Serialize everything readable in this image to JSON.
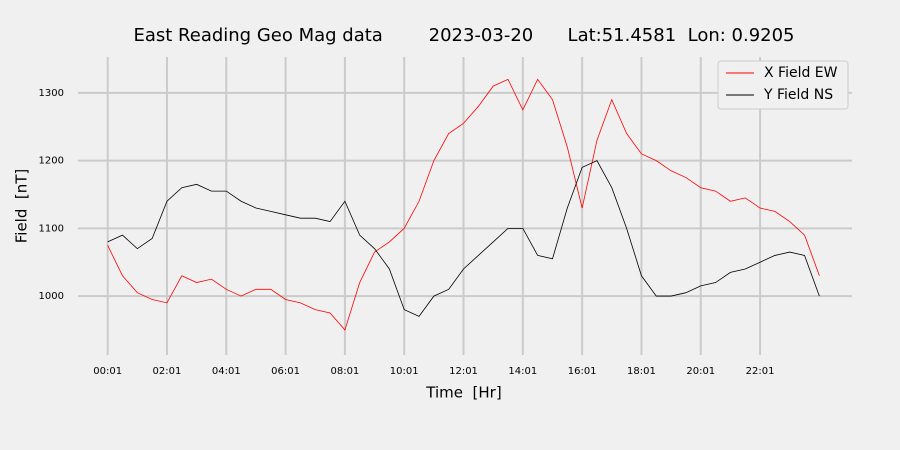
{
  "chart_data": {
    "type": "line",
    "title": "East Reading Geo Mag data        2023-03-20      Lat:51.4581  Lon: 0.9205",
    "xlabel": "Time  [Hr]",
    "ylabel": "Field  [nT]",
    "x": [
      0,
      0.5,
      1,
      1.5,
      2,
      2.5,
      3,
      3.5,
      4,
      4.5,
      5,
      5.5,
      6,
      6.5,
      7,
      7.5,
      8,
      8.5,
      9,
      9.5,
      10,
      10.5,
      11,
      11.5,
      12,
      12.5,
      13,
      13.5,
      14,
      14.5,
      15,
      15.5,
      16,
      16.5,
      17,
      17.5,
      18,
      18.5,
      19,
      19.5,
      20,
      20.5,
      21,
      21.5,
      22,
      22.5,
      23,
      23.5,
      24
    ],
    "series": [
      {
        "name": "X Field EW",
        "color": "#ff0000",
        "values": [
          1075,
          1030,
          1005,
          995,
          990,
          1030,
          1020,
          1025,
          1010,
          1000,
          1010,
          1010,
          995,
          990,
          980,
          975,
          950,
          1020,
          1065,
          1080,
          1100,
          1140,
          1200,
          1240,
          1255,
          1280,
          1310,
          1320,
          1275,
          1320,
          1290,
          1220,
          1130,
          1230,
          1290,
          1240,
          1210,
          1200,
          1185,
          1175,
          1160,
          1155,
          1140,
          1145,
          1130,
          1125,
          1110,
          1090,
          1030
        ]
      },
      {
        "name": "Y Field NS",
        "color": "#000000",
        "values": [
          1080,
          1090,
          1070,
          1085,
          1140,
          1160,
          1165,
          1155,
          1155,
          1140,
          1130,
          1125,
          1120,
          1115,
          1115,
          1110,
          1140,
          1090,
          1070,
          1040,
          980,
          970,
          1000,
          1010,
          1040,
          1060,
          1080,
          1100,
          1100,
          1060,
          1055,
          1130,
          1190,
          1200,
          1160,
          1100,
          1030,
          1000,
          1000,
          1005,
          1015,
          1020,
          1035,
          1040,
          1050,
          1060,
          1065,
          1060,
          1000
        ]
      }
    ],
    "xlim": [
      -1,
      25.1
    ],
    "xticks": [
      {
        "value": 0,
        "label": "00:01"
      },
      {
        "value": 2,
        "label": "02:01"
      },
      {
        "value": 4,
        "label": "04:01"
      },
      {
        "value": 6,
        "label": "06:01"
      },
      {
        "value": 8,
        "label": "08:01"
      },
      {
        "value": 10,
        "label": "10:01"
      },
      {
        "value": 12,
        "label": "12:01"
      },
      {
        "value": 14,
        "label": "14:01"
      },
      {
        "value": 16,
        "label": "16:01"
      },
      {
        "value": 18,
        "label": "18:01"
      },
      {
        "value": 20,
        "label": "20:01"
      },
      {
        "value": 22,
        "label": "22:01"
      }
    ],
    "ylim": [
      913,
      1353
    ],
    "yticks": [
      1000,
      1100,
      1200,
      1300
    ],
    "grid": true,
    "legend": "upper right"
  }
}
